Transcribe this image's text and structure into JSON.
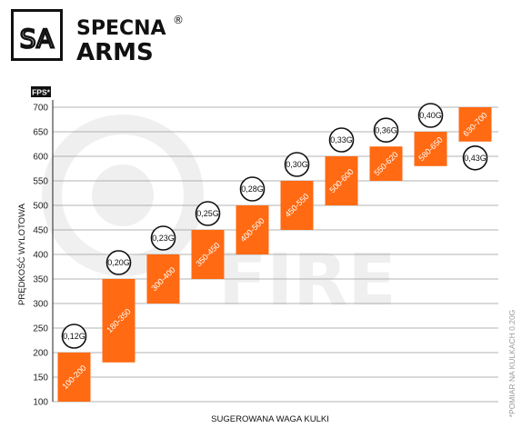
{
  "brand": {
    "monogram": "SA",
    "line1": "SPECNA",
    "line2": "ARMS",
    "registered": "®"
  },
  "note": "*POMIAR NA KULKACH 0.20G",
  "chart_data": {
    "type": "bar",
    "title": "",
    "unit_label": "FPS*",
    "ylabel": "PRĘDKOŚĆ WYLOTOWA",
    "xlabel": "SUGEROWANA WAGA KULKI",
    "ylim": [
      100,
      700
    ],
    "yticks": [
      100,
      150,
      200,
      250,
      300,
      350,
      400,
      450,
      500,
      550,
      600,
      650,
      700
    ],
    "grid": true,
    "bar_color": "#ff6a13",
    "bars": [
      {
        "low": 100,
        "high": 200,
        "label": "100-200",
        "weight": "0,12G",
        "weight_position": "above"
      },
      {
        "low": 180,
        "high": 350,
        "label": "180-350",
        "weight": "0,20G",
        "weight_position": "above"
      },
      {
        "low": 300,
        "high": 400,
        "label": "300-400",
        "weight": "0,23G",
        "weight_position": "above"
      },
      {
        "low": 350,
        "high": 450,
        "label": "350-450",
        "weight": "0,25G",
        "weight_position": "above"
      },
      {
        "low": 400,
        "high": 500,
        "label": "400-500",
        "weight": "0,28G",
        "weight_position": "above"
      },
      {
        "low": 450,
        "high": 550,
        "label": "450-550",
        "weight": "0,30G",
        "weight_position": "above"
      },
      {
        "low": 500,
        "high": 600,
        "label": "500-600",
        "weight": "0,33G",
        "weight_position": "above"
      },
      {
        "low": 550,
        "high": 620,
        "label": "550-620",
        "weight": "0,36G",
        "weight_position": "above"
      },
      {
        "low": 580,
        "high": 650,
        "label": "580-650",
        "weight": "0,40G",
        "weight_position": "above"
      },
      {
        "low": 630,
        "high": 700,
        "label": "630-700",
        "weight": "0,43G",
        "weight_position": "below"
      }
    ]
  }
}
